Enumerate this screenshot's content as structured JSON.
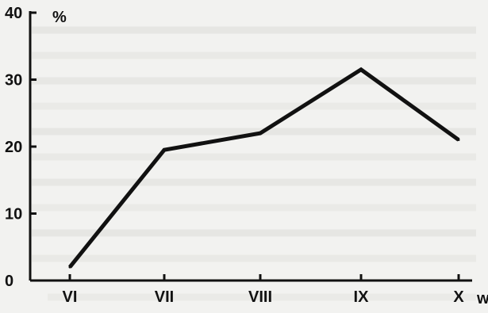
{
  "chart_data": {
    "type": "line",
    "title": "",
    "xlabel": "",
    "ylabel": "",
    "x_unit_label": "w",
    "y_unit_label": "%",
    "categories": [
      "VI",
      "VII",
      "VIII",
      "IX",
      "X"
    ],
    "series": [
      {
        "values": [
          2,
          19.5,
          22,
          31.5,
          21
        ]
      }
    ],
    "y_ticks": [
      0,
      10,
      20,
      30,
      40
    ],
    "ylim": [
      0,
      40
    ],
    "grid": false,
    "line_color": "#111111",
    "axis_color": "#111111"
  }
}
